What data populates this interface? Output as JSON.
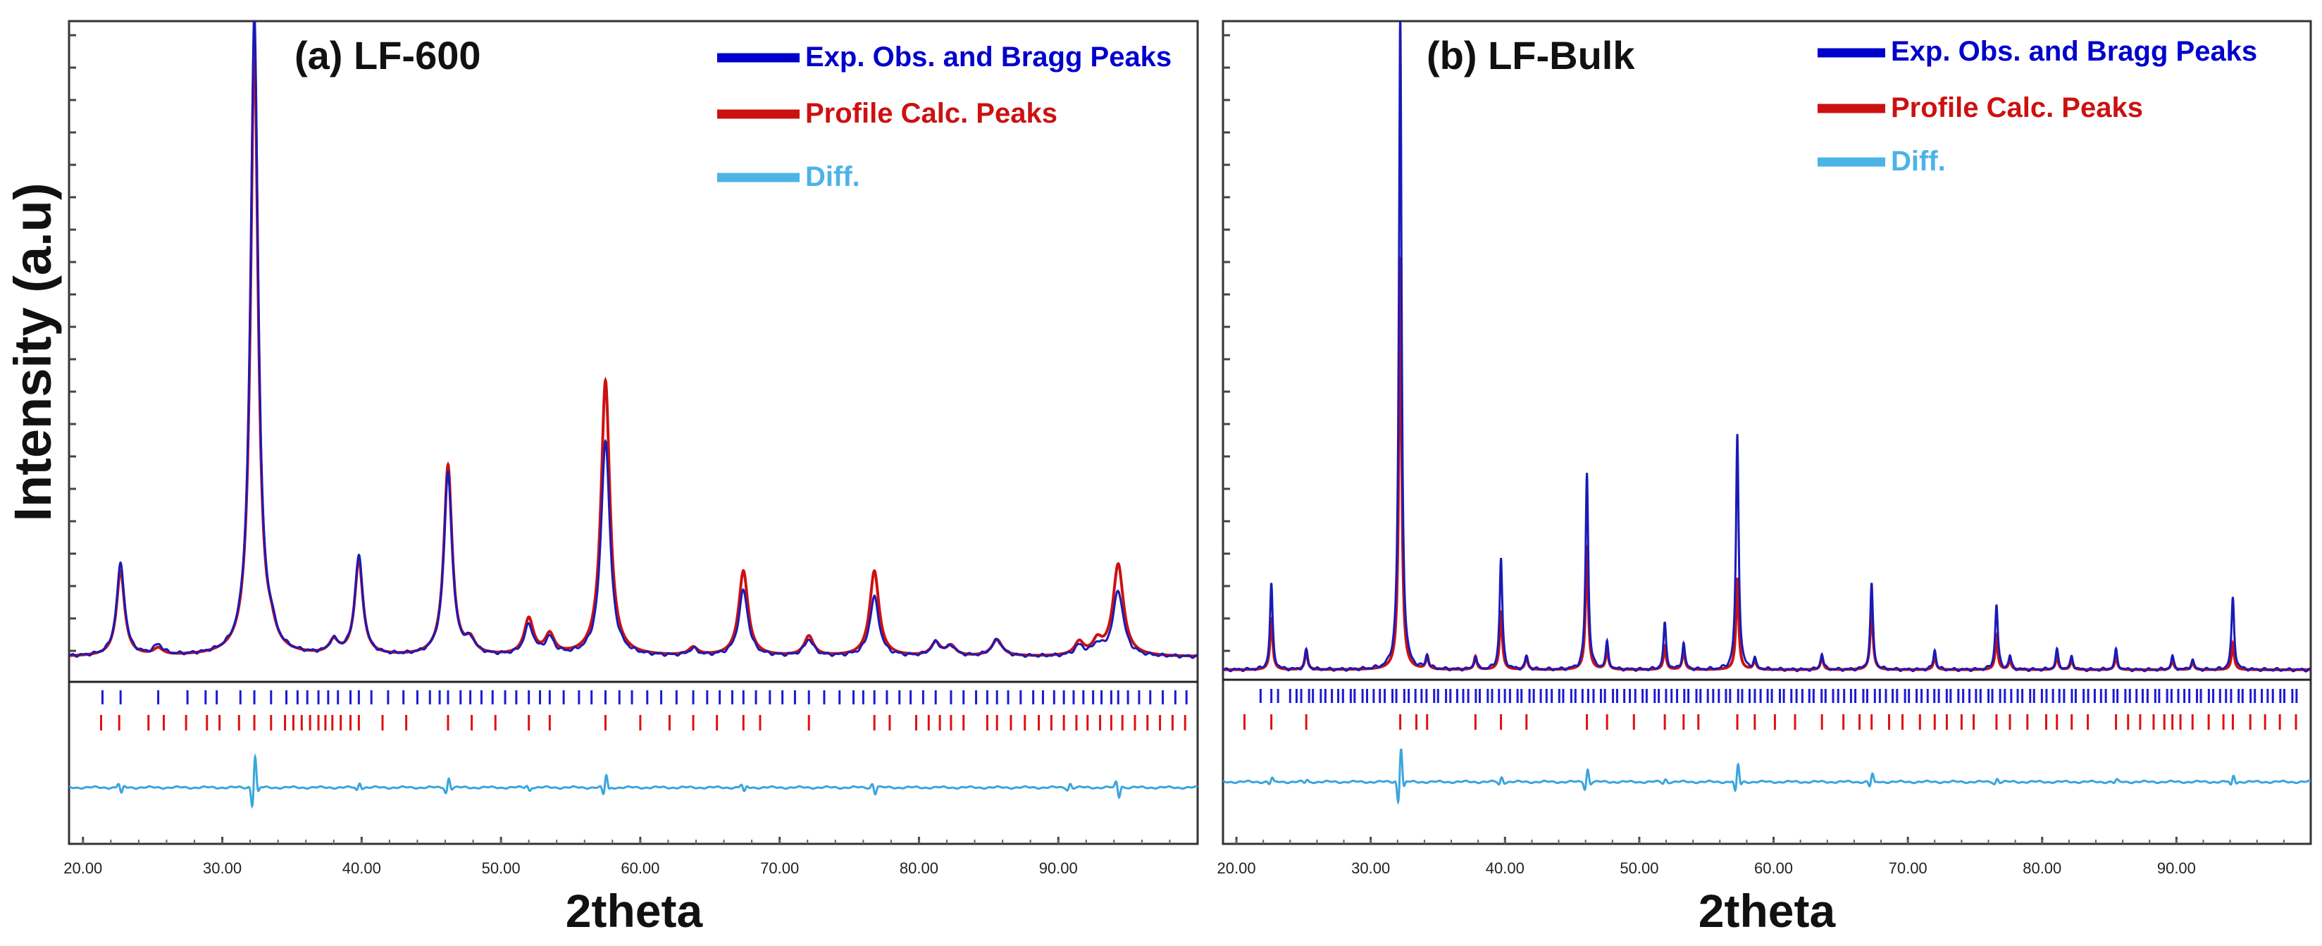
{
  "figure": {
    "ylabel": "Intensity (a.u)"
  },
  "chart_data": [
    {
      "type": "line",
      "panel_label": "(a) LF-600",
      "xlabel": "2theta",
      "xlim": [
        19,
        100
      ],
      "ylim": [
        -0.27,
        1.0
      ],
      "xticks": [
        20,
        30,
        40,
        50,
        60,
        70,
        80,
        90
      ],
      "xtick_labels": [
        "20.00",
        "30.00",
        "40.00",
        "50.00",
        "60.00",
        "70.00",
        "80.00",
        "90.00"
      ],
      "legend": [
        {
          "label": "Exp. Obs. and Bragg Peaks",
          "color": "#0000cc"
        },
        {
          "label": "Profile Calc. Peaks",
          "color": "#cc1111"
        },
        {
          "label": "Diff.",
          "color": "#4cb3e6"
        }
      ],
      "legend_position": "top-right",
      "background": 0.035,
      "peaks": [
        {
          "x": 22.7,
          "obs": 0.14,
          "calc": 0.13,
          "w": 0.35
        },
        {
          "x": 25.4,
          "obs": 0.015,
          "calc": 0.01,
          "w": 0.4
        },
        {
          "x": 32.3,
          "obs": 0.98,
          "calc": 0.93,
          "w": 0.33
        },
        {
          "x": 33.5,
          "obs": 0.02,
          "calc": 0.02,
          "w": 0.4
        },
        {
          "x": 38.0,
          "obs": 0.02,
          "calc": 0.02,
          "w": 0.4
        },
        {
          "x": 39.8,
          "obs": 0.15,
          "calc": 0.145,
          "w": 0.35
        },
        {
          "x": 46.2,
          "obs": 0.28,
          "calc": 0.29,
          "w": 0.35
        },
        {
          "x": 47.8,
          "obs": 0.02,
          "calc": 0.02,
          "w": 0.4
        },
        {
          "x": 52.0,
          "obs": 0.045,
          "calc": 0.055,
          "w": 0.4
        },
        {
          "x": 53.5,
          "obs": 0.025,
          "calc": 0.03,
          "w": 0.4
        },
        {
          "x": 57.5,
          "obs": 0.33,
          "calc": 0.42,
          "w": 0.38
        },
        {
          "x": 63.8,
          "obs": 0.01,
          "calc": 0.012,
          "w": 0.4
        },
        {
          "x": 67.4,
          "obs": 0.1,
          "calc": 0.13,
          "w": 0.4
        },
        {
          "x": 72.1,
          "obs": 0.025,
          "calc": 0.03,
          "w": 0.4
        },
        {
          "x": 76.8,
          "obs": 0.09,
          "calc": 0.13,
          "w": 0.4
        },
        {
          "x": 81.2,
          "obs": 0.02,
          "calc": 0.02,
          "w": 0.4
        },
        {
          "x": 82.3,
          "obs": 0.015,
          "calc": 0.015,
          "w": 0.4
        },
        {
          "x": 85.6,
          "obs": 0.025,
          "calc": 0.025,
          "w": 0.45
        },
        {
          "x": 91.5,
          "obs": 0.015,
          "calc": 0.02,
          "w": 0.4
        },
        {
          "x": 92.8,
          "obs": 0.015,
          "calc": 0.02,
          "w": 0.4
        },
        {
          "x": 94.3,
          "obs": 0.1,
          "calc": 0.14,
          "w": 0.45
        }
      ],
      "bragg_blue": [
        21.4,
        22.7,
        25.4,
        27.5,
        28.8,
        29.6,
        31.3,
        32.3,
        33.5,
        34.6,
        35.4,
        36.1,
        36.9,
        37.6,
        38.3,
        39.2,
        39.8,
        40.7,
        41.9,
        43.0,
        44.0,
        44.9,
        45.6,
        46.2,
        47.1,
        47.8,
        48.6,
        49.4,
        50.3,
        51.1,
        52.0,
        52.8,
        53.5,
        54.5,
        55.6,
        56.5,
        57.5,
        58.5,
        59.4,
        60.5,
        61.5,
        62.6,
        63.8,
        64.8,
        65.7,
        66.6,
        67.4,
        68.3,
        69.3,
        70.2,
        71.1,
        72.1,
        73.2,
        74.3,
        75.3,
        76.0,
        76.8,
        77.7,
        78.6,
        79.4,
        80.3,
        81.2,
        82.3,
        83.2,
        84.1,
        84.9,
        85.6,
        86.4,
        87.3,
        88.2,
        88.9,
        89.7,
        90.4,
        91.1,
        91.8,
        92.5,
        93.1,
        93.8,
        94.3,
        95.0,
        95.8,
        96.6,
        97.5,
        98.4,
        99.2
      ],
      "bragg_red": [
        21.3,
        22.6,
        24.7,
        25.8,
        27.4,
        28.9,
        29.8,
        31.2,
        32.3,
        33.5,
        34.5,
        35.1,
        35.7,
        36.3,
        36.9,
        37.4,
        37.9,
        38.5,
        39.2,
        39.8,
        41.5,
        43.2,
        46.2,
        47.9,
        49.6,
        52.0,
        53.5,
        57.5,
        60.0,
        62.1,
        63.8,
        65.5,
        67.4,
        68.6,
        72.1,
        76.8,
        77.9,
        79.8,
        80.7,
        81.5,
        82.3,
        83.2,
        84.9,
        85.6,
        86.6,
        87.6,
        88.6,
        89.5,
        90.4,
        91.3,
        92.1,
        93.0,
        93.8,
        94.6,
        95.5,
        96.4,
        97.3,
        98.2,
        99.1
      ],
      "diff_spikes": [
        {
          "x": 22.7,
          "a": -0.02
        },
        {
          "x": 32.3,
          "a": 0.1
        },
        {
          "x": 39.8,
          "a": 0.015
        },
        {
          "x": 46.2,
          "a": 0.03
        },
        {
          "x": 52.0,
          "a": -0.01
        },
        {
          "x": 57.5,
          "a": 0.04
        },
        {
          "x": 67.4,
          "a": -0.015
        },
        {
          "x": 76.8,
          "a": -0.02
        },
        {
          "x": 90.8,
          "a": 0.012
        },
        {
          "x": 94.3,
          "a": -0.03
        }
      ]
    },
    {
      "type": "line",
      "panel_label": "(b) LF-Bulk",
      "xlabel": "2theta",
      "xlim": [
        19,
        100
      ],
      "ylim": [
        -0.27,
        1.0
      ],
      "xticks": [
        20,
        30,
        40,
        50,
        60,
        70,
        80,
        90
      ],
      "xtick_labels": [
        "20.00",
        "30.00",
        "40.00",
        "50.00",
        "60.00",
        "70.00",
        "80.00",
        "90.00"
      ],
      "legend": [
        {
          "label": "Exp. Obs. and Bragg Peaks",
          "color": "#0000cc"
        },
        {
          "label": "Profile Calc. Peaks",
          "color": "#cc1111"
        },
        {
          "label": "Diff.",
          "color": "#4cb3e6"
        }
      ],
      "legend_position": "top-right",
      "background": 0.012,
      "peaks": [
        {
          "x": 22.6,
          "obs": 0.13,
          "calc": 0.08,
          "w": 0.12
        },
        {
          "x": 25.2,
          "obs": 0.03,
          "calc": 0.03,
          "w": 0.12
        },
        {
          "x": 32.2,
          "obs": 1.0,
          "calc": 0.63,
          "w": 0.12
        },
        {
          "x": 34.2,
          "obs": 0.02,
          "calc": 0.02,
          "w": 0.12
        },
        {
          "x": 37.8,
          "obs": 0.02,
          "calc": 0.02,
          "w": 0.12
        },
        {
          "x": 39.7,
          "obs": 0.17,
          "calc": 0.09,
          "w": 0.12
        },
        {
          "x": 41.6,
          "obs": 0.02,
          "calc": 0.02,
          "w": 0.12
        },
        {
          "x": 46.1,
          "obs": 0.3,
          "calc": 0.19,
          "w": 0.12
        },
        {
          "x": 47.6,
          "obs": 0.04,
          "calc": 0.03,
          "w": 0.12
        },
        {
          "x": 51.9,
          "obs": 0.07,
          "calc": 0.035,
          "w": 0.12
        },
        {
          "x": 53.3,
          "obs": 0.04,
          "calc": 0.03,
          "w": 0.12
        },
        {
          "x": 57.3,
          "obs": 0.36,
          "calc": 0.14,
          "w": 0.12
        },
        {
          "x": 58.6,
          "obs": 0.015,
          "calc": 0.015,
          "w": 0.12
        },
        {
          "x": 63.6,
          "obs": 0.025,
          "calc": 0.02,
          "w": 0.12
        },
        {
          "x": 67.3,
          "obs": 0.13,
          "calc": 0.1,
          "w": 0.12
        },
        {
          "x": 72.0,
          "obs": 0.03,
          "calc": 0.02,
          "w": 0.12
        },
        {
          "x": 76.6,
          "obs": 0.1,
          "calc": 0.05,
          "w": 0.12
        },
        {
          "x": 77.6,
          "obs": 0.02,
          "calc": 0.015,
          "w": 0.12
        },
        {
          "x": 81.1,
          "obs": 0.03,
          "calc": 0.02,
          "w": 0.12
        },
        {
          "x": 82.2,
          "obs": 0.02,
          "calc": 0.015,
          "w": 0.12
        },
        {
          "x": 85.5,
          "obs": 0.03,
          "calc": 0.02,
          "w": 0.12
        },
        {
          "x": 89.7,
          "obs": 0.02,
          "calc": 0.015,
          "w": 0.12
        },
        {
          "x": 91.2,
          "obs": 0.015,
          "calc": 0.012,
          "w": 0.12
        },
        {
          "x": 94.2,
          "obs": 0.11,
          "calc": 0.04,
          "w": 0.12
        }
      ],
      "bragg_blue_range": [
        24.0,
        99.0
      ],
      "bragg_blue_extra": [
        21.8,
        22.6,
        23.1
      ],
      "bragg_blue_count": 170,
      "bragg_red": [
        20.6,
        22.6,
        25.2,
        32.2,
        33.4,
        34.2,
        37.8,
        39.7,
        41.6,
        46.1,
        47.6,
        49.6,
        51.9,
        53.3,
        54.4,
        57.3,
        58.6,
        60.1,
        61.6,
        63.6,
        65.2,
        66.4,
        67.3,
        68.6,
        69.6,
        70.9,
        72.0,
        72.9,
        74.0,
        74.9,
        76.6,
        77.6,
        78.9,
        80.3,
        81.1,
        82.2,
        83.4,
        85.5,
        86.4,
        87.3,
        88.3,
        89.1,
        89.7,
        90.3,
        91.2,
        92.4,
        93.5,
        94.2,
        95.5,
        96.6,
        97.7,
        98.9
      ],
      "diff_spikes": [
        {
          "x": 22.6,
          "a": 0.012
        },
        {
          "x": 25.2,
          "a": 0.006
        },
        {
          "x": 32.2,
          "a": 0.11
        },
        {
          "x": 39.7,
          "a": 0.015
        },
        {
          "x": 46.1,
          "a": 0.04
        },
        {
          "x": 51.9,
          "a": 0.008
        },
        {
          "x": 57.3,
          "a": 0.055
        },
        {
          "x": 67.3,
          "a": 0.025
        },
        {
          "x": 76.6,
          "a": 0.01
        },
        {
          "x": 85.5,
          "a": 0.006
        },
        {
          "x": 94.2,
          "a": 0.02
        }
      ]
    }
  ]
}
